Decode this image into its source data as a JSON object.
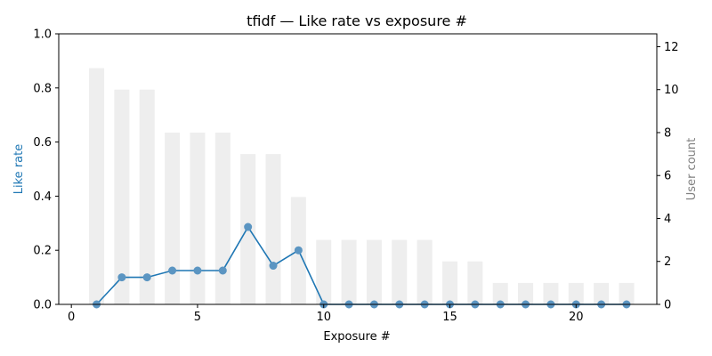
{
  "chart_data": {
    "type": "bar+line",
    "title": "tfidf — Like rate vs exposure #",
    "xlabel": "Exposure #",
    "ylabel_left": "Like rate",
    "ylabel_right": "User count",
    "xlim": [
      -0.5,
      23.2
    ],
    "ylim_left": [
      0,
      1.0
    ],
    "ylim_right": [
      0,
      12.6
    ],
    "xticks": [
      0,
      5,
      10,
      15,
      20
    ],
    "yticks_left": [
      0.0,
      0.2,
      0.4,
      0.6,
      0.8,
      1.0
    ],
    "yticks_right": [
      0,
      2,
      4,
      6,
      8,
      10,
      12
    ],
    "x": [
      1,
      2,
      3,
      4,
      5,
      6,
      7,
      8,
      9,
      10,
      11,
      12,
      13,
      14,
      15,
      16,
      17,
      18,
      19,
      20,
      21,
      22
    ],
    "series": [
      {
        "axis": "right",
        "kind": "bar",
        "color": "#eeeeee",
        "values": [
          11,
          10,
          10,
          8,
          8,
          8,
          7,
          7,
          5,
          3,
          3,
          3,
          3,
          3,
          2,
          2,
          1,
          1,
          1,
          1,
          1,
          1
        ]
      },
      {
        "axis": "left",
        "kind": "line",
        "color": "#1f77b4",
        "values": [
          0.0,
          0.1,
          0.1,
          0.125,
          0.125,
          0.125,
          0.286,
          0.143,
          0.2,
          0.0,
          0.0,
          0.0,
          0.0,
          0.0,
          0.0,
          0.0,
          0.0,
          0.0,
          0.0,
          0.0,
          0.0,
          0.0
        ]
      }
    ],
    "colors": {
      "left_axis_label": "#1f77b4",
      "right_axis_label": "#808080",
      "bars": "#eeeeee",
      "line": "#1f77b4",
      "markers": "#5b95c2"
    },
    "grid": false
  }
}
